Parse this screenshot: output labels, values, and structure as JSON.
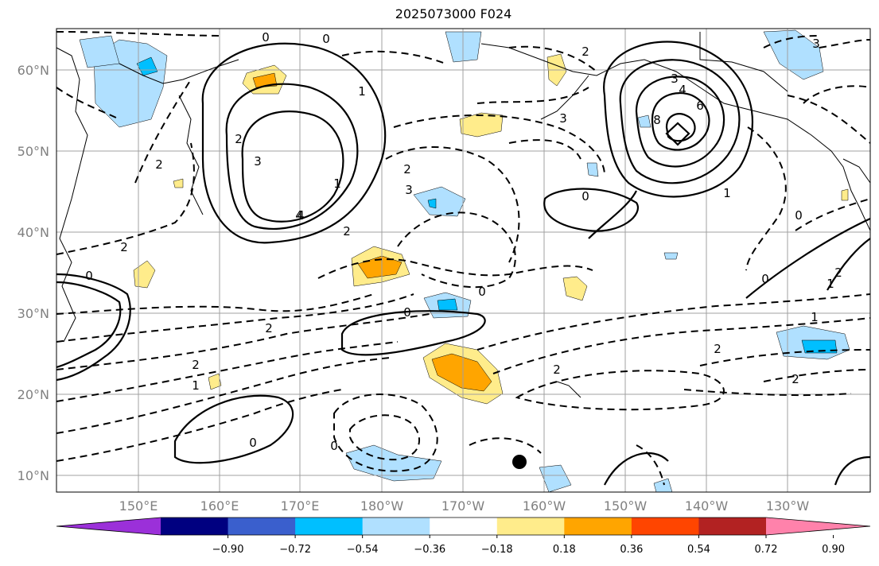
{
  "title": "2025073000 F024",
  "lat_labels": [
    "60°N",
    "50°N",
    "40°N",
    "30°N",
    "20°N",
    "10°N"
  ],
  "lon_labels": [
    "150°E",
    "160°E",
    "170°E",
    "180°W",
    "170°W",
    "160°W",
    "150°W",
    "140°W",
    "130°W"
  ],
  "colorbar": {
    "ticks": [
      "−0.90",
      "−0.72",
      "−0.54",
      "−0.36",
      "−0.18",
      "0.18",
      "0.36",
      "0.54",
      "0.72",
      "0.90"
    ],
    "colors": [
      "#9b30d9",
      "#000080",
      "#3a5fcd",
      "#00bfff",
      "#b0e0ff",
      "#ffffff",
      "#ffec8b",
      "#ffa500",
      "#ff4500",
      "#b22222",
      "#ff82ab"
    ]
  },
  "contour_labels": [
    "0",
    "0",
    "1",
    "2",
    "2",
    "3",
    "1",
    "4",
    "3",
    "4",
    "6",
    "8",
    "2",
    "0",
    "3",
    "2",
    "2",
    "1",
    "2",
    "3",
    "4",
    "2",
    "0",
    "0",
    "0",
    "2",
    "1",
    "2",
    "2",
    "1",
    "0",
    "2",
    "2",
    "1",
    "3",
    "0",
    "0",
    "0"
  ]
}
